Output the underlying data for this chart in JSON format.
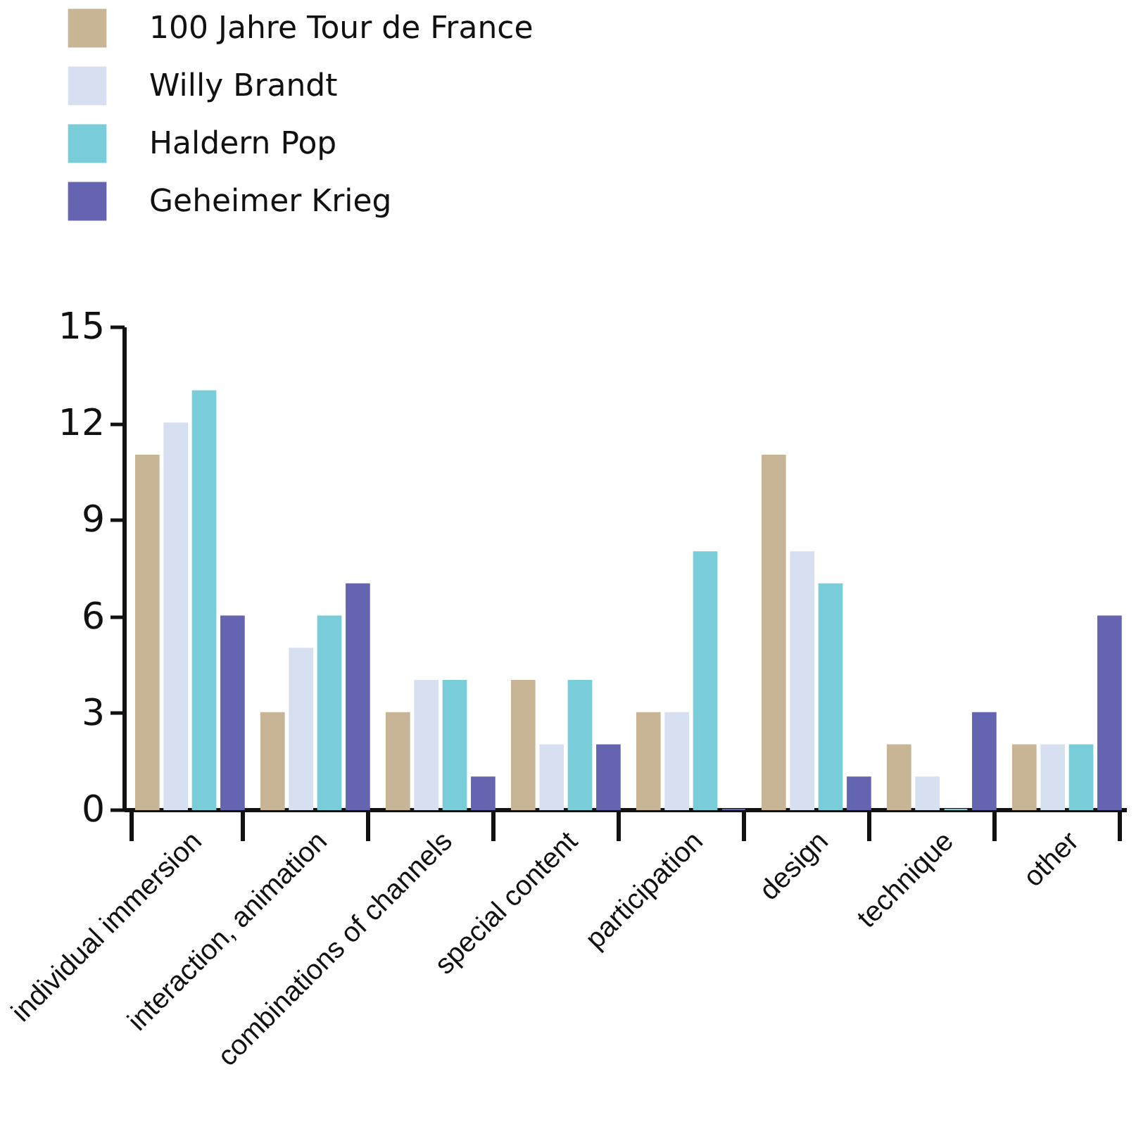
{
  "chart_data": {
    "type": "bar",
    "categories": [
      "individual immersion",
      "interaction, animation",
      "combinations of channels",
      "special content",
      "participation",
      "design",
      "technique",
      "other"
    ],
    "series": [
      {
        "name": "100 Jahre Tour de France",
        "color": "#c8b596",
        "values": [
          11,
          3,
          3,
          4,
          3,
          11,
          2,
          2
        ]
      },
      {
        "name": "Willy Brandt",
        "color": "#d7e0f1",
        "values": [
          12,
          5,
          4,
          2,
          3,
          8,
          1,
          2
        ]
      },
      {
        "name": "Haldern Pop",
        "color": "#78cdd9",
        "values": [
          13,
          6,
          4,
          4,
          8,
          7,
          0,
          2
        ]
      },
      {
        "name": "Geheimer Krieg",
        "color": "#6564b1",
        "values": [
          6,
          7,
          1,
          2,
          0,
          1,
          3,
          6
        ]
      }
    ],
    "ylim": [
      0,
      15
    ],
    "yticks": [
      0,
      3,
      6,
      9,
      12,
      15
    ],
    "grid": false,
    "legend": "top left"
  }
}
